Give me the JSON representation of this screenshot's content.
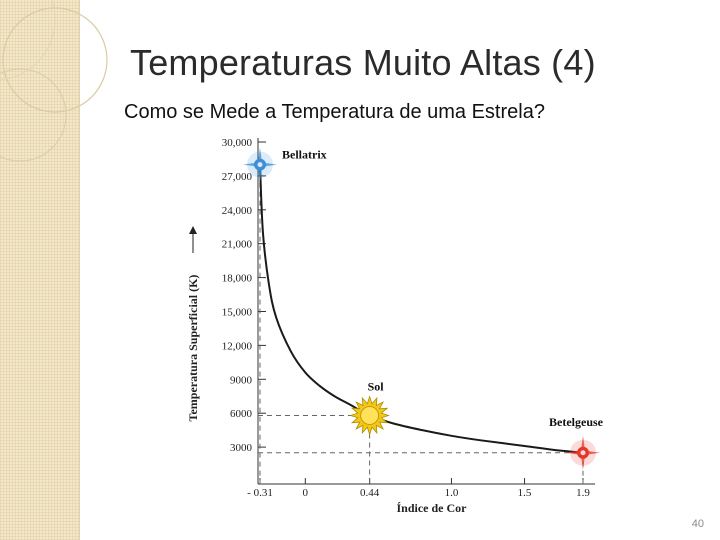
{
  "slide": {
    "title": "Temperaturas Muito Altas (4)",
    "subtitle": "Como se Mede a Temperatura de uma Estrela?",
    "page_number": "40"
  },
  "chart_data": {
    "type": "line",
    "xlabel": "Índice de Cor",
    "ylabel": "Temperatura Superficial (K)",
    "xlim": [
      -0.31,
      1.9
    ],
    "ylim": [
      0,
      30000
    ],
    "x_ticks": [
      {
        "value": -0.31,
        "label": "- 0.31"
      },
      {
        "value": 0,
        "label": "0"
      },
      {
        "value": 0.44,
        "label": "0.44"
      },
      {
        "value": 1.0,
        "label": "1.0"
      },
      {
        "value": 1.5,
        "label": "1.5"
      },
      {
        "value": 1.9,
        "label": "1.9"
      }
    ],
    "y_ticks": [
      {
        "value": 30000,
        "label": "30,000"
      },
      {
        "value": 27000,
        "label": "27,000"
      },
      {
        "value": 24000,
        "label": "24,000"
      },
      {
        "value": 21000,
        "label": "21,000"
      },
      {
        "value": 18000,
        "label": "18,000"
      },
      {
        "value": 15000,
        "label": "15,000"
      },
      {
        "value": 12000,
        "label": "12,000"
      },
      {
        "value": 9000,
        "label": "9000"
      },
      {
        "value": 6000,
        "label": "6000"
      },
      {
        "value": 3000,
        "label": "3000"
      }
    ],
    "curve": [
      {
        "x": -0.31,
        "y": 28000
      },
      {
        "x": -0.29,
        "y": 22000
      },
      {
        "x": -0.25,
        "y": 17500
      },
      {
        "x": -0.2,
        "y": 14500
      },
      {
        "x": -0.1,
        "y": 11500
      },
      {
        "x": 0.0,
        "y": 9600
      },
      {
        "x": 0.1,
        "y": 8400
      },
      {
        "x": 0.2,
        "y": 7500
      },
      {
        "x": 0.3,
        "y": 6800
      },
      {
        "x": 0.44,
        "y": 5800
      },
      {
        "x": 0.6,
        "y": 5100
      },
      {
        "x": 0.8,
        "y": 4500
      },
      {
        "x": 1.0,
        "y": 4000
      },
      {
        "x": 1.2,
        "y": 3600
      },
      {
        "x": 1.5,
        "y": 3100
      },
      {
        "x": 1.7,
        "y": 2750
      },
      {
        "x": 1.9,
        "y": 2500
      }
    ],
    "stars": [
      {
        "name": "Bellatrix",
        "x": -0.31,
        "y": 28000,
        "color": "#3a8fd6",
        "ref_y": 28000
      },
      {
        "name": "Sol",
        "x": 0.44,
        "y": 5800,
        "color": "#f2c81b",
        "ref_y": 5800
      },
      {
        "name": "Betelgeuse",
        "x": 1.9,
        "y": 2500,
        "color": "#e23a2a",
        "ref_y": 2500
      }
    ],
    "grid": false,
    "legend": "none"
  }
}
